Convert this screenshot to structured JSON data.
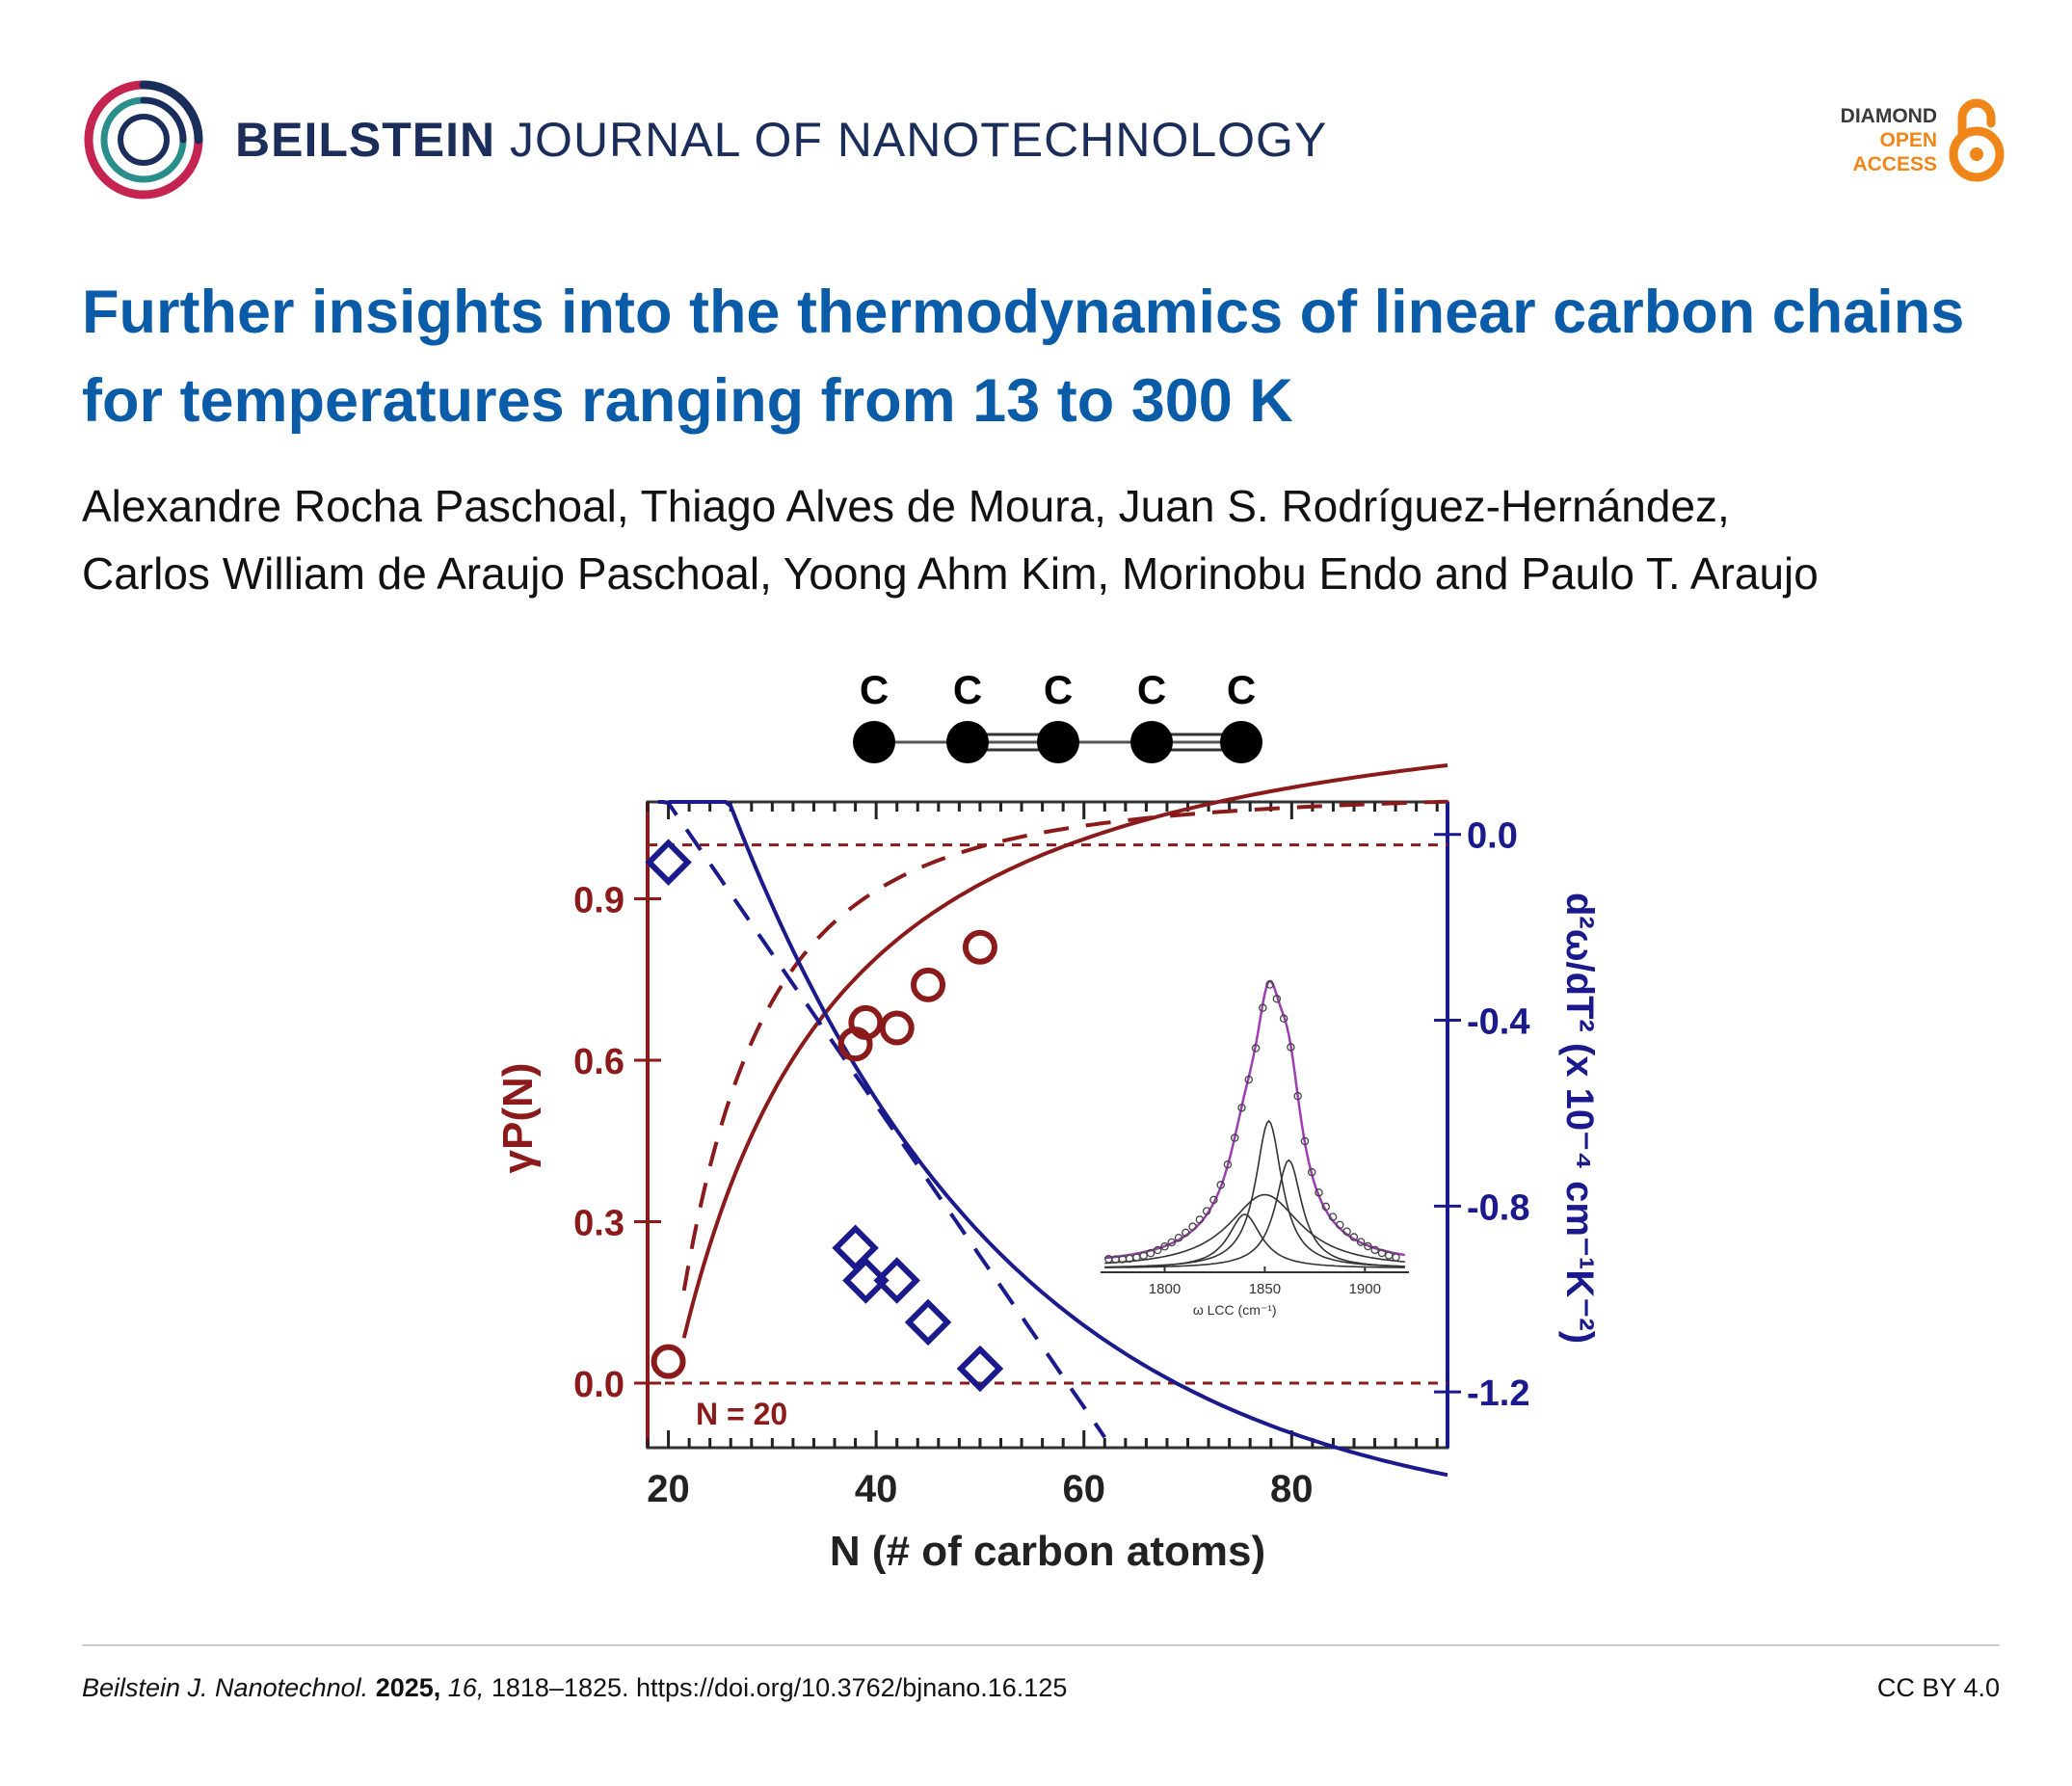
{
  "header": {
    "journal_bold": "BEILSTEIN",
    "journal_rest": "JOURNAL OF NANOTECHNOLOGY",
    "badge_line1": "DIAMOND",
    "badge_line2": "OPEN",
    "badge_line3": "ACCESS"
  },
  "article": {
    "title": "Further insights into the thermodynamics of linear carbon chains for temperatures ranging from 13 to 300 K",
    "authors_line1": "Alexandre Rocha Paschoal, Thiago Alves de Moura, Juan S. Rodríguez-Hernández,",
    "authors_line2": "Carlos William de Araujo Paschoal, Yoong Ahm Kim, Morinobu Endo and Paulo T. Araujo"
  },
  "footer": {
    "journal_abbrev": "Beilstein J. Nanotechnol.",
    "year": "2025,",
    "volume": "16,",
    "pages_doi": "1818–1825. https://doi.org/10.3762/bjnano.16.125",
    "license": "CC BY 4.0"
  },
  "colors": {
    "left_axis": "#8b1a1a",
    "right_axis": "#1a1a8c",
    "title": "#0a5ca8"
  },
  "chart_data": {
    "type": "scatter",
    "molecule_labels": [
      "C",
      "C",
      "C",
      "C",
      "C"
    ],
    "xlabel": "N (# of carbon atoms)",
    "ylabel_left": "γP(N)",
    "ylabel_right": "d²ω/dT² (x 10⁻⁴ cm⁻¹K⁻²)",
    "xlim": [
      18,
      95
    ],
    "ylim_left": [
      -0.12,
      1.08
    ],
    "ylim_right": [
      -1.32,
      0.07
    ],
    "x_ticks": [
      20,
      40,
      60,
      80
    ],
    "y_left_ticks": [
      "0.0",
      "0.3",
      "0.6",
      "0.9"
    ],
    "y_right_ticks": [
      "0.0",
      "-0.4",
      "-0.8",
      "-1.2"
    ],
    "annotation": "N = 20",
    "series": [
      {
        "axis": "left",
        "marker": "circle",
        "points": [
          [
            20,
            0.04
          ],
          [
            38,
            0.63
          ],
          [
            39,
            0.67
          ],
          [
            42,
            0.66
          ],
          [
            45,
            0.74
          ],
          [
            50,
            0.81
          ]
        ]
      },
      {
        "axis": "right",
        "marker": "diamond",
        "points": [
          [
            20,
            -0.06
          ],
          [
            38,
            -0.89
          ],
          [
            39,
            -0.96
          ],
          [
            42,
            -0.96
          ],
          [
            45,
            -1.05
          ],
          [
            50,
            -1.15
          ]
        ]
      }
    ],
    "inset": {
      "x_ticks": [
        "1800",
        "1850",
        "1900"
      ],
      "xlabel": "ω LCC (cm⁻¹)"
    }
  }
}
